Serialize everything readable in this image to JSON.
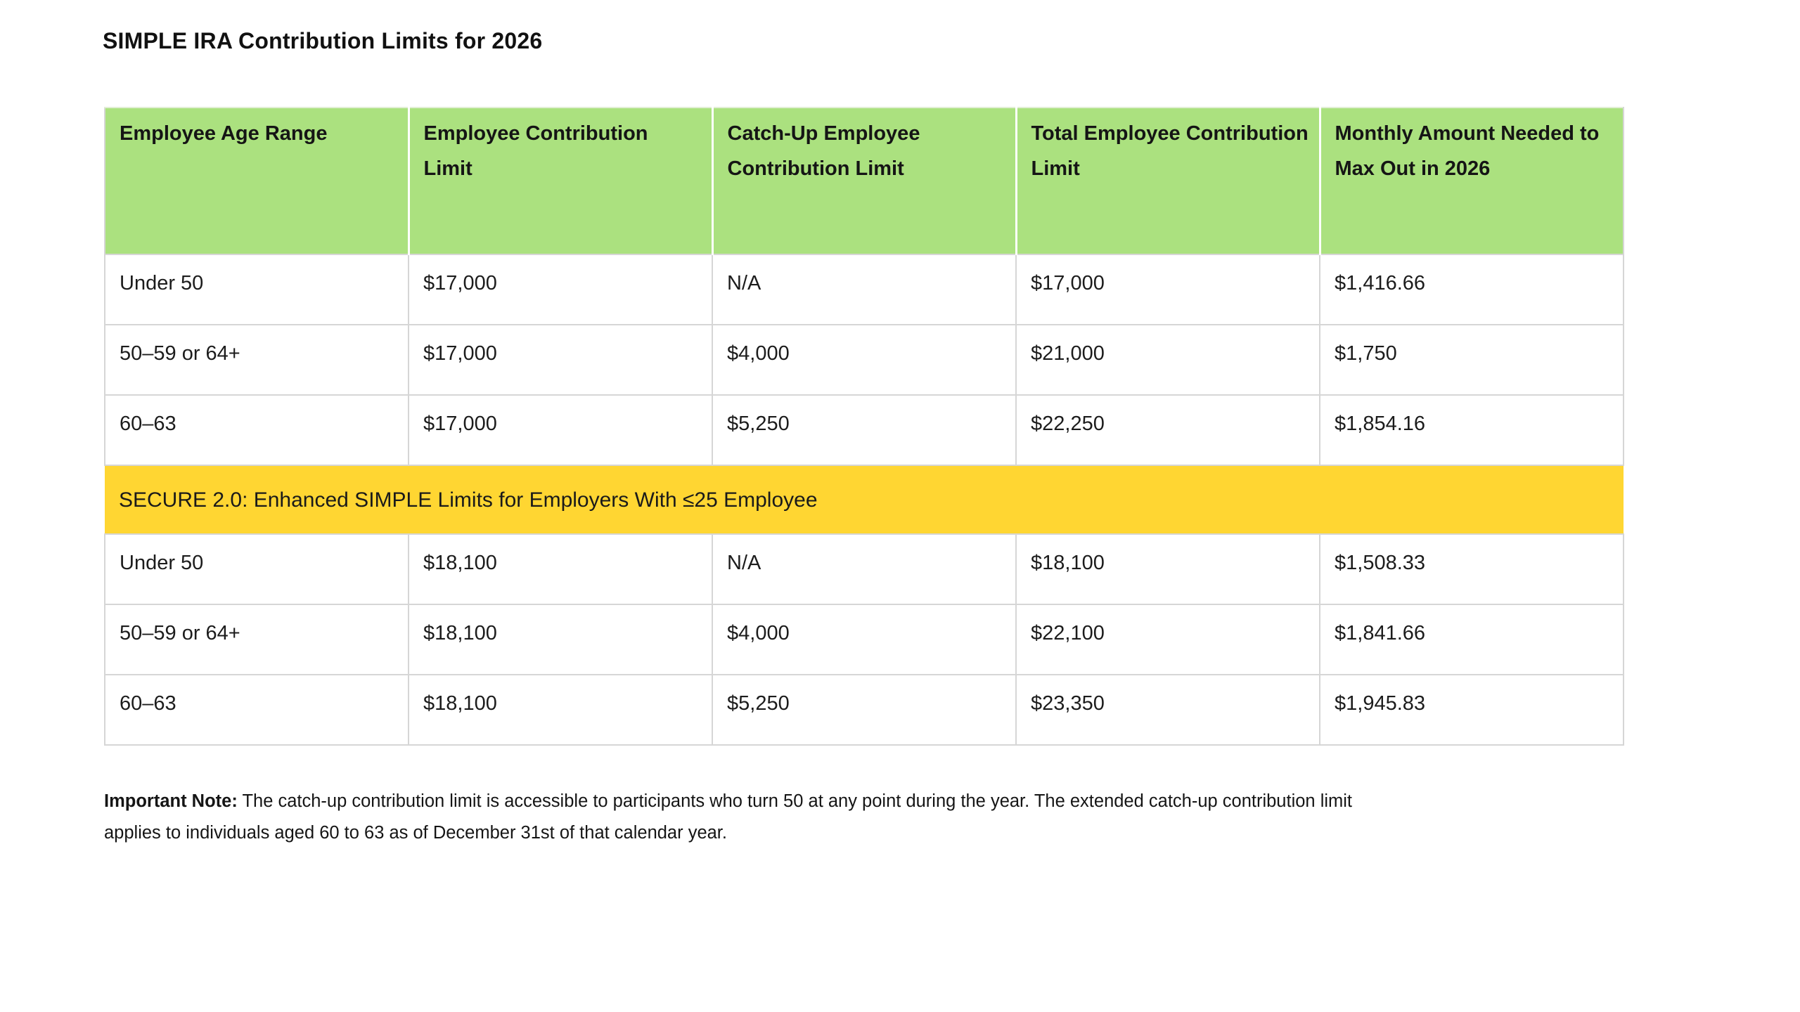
{
  "page": {
    "title": "SIMPLE IRA Contribution Limits for 2026"
  },
  "table": {
    "headers": [
      "Employee Age Range",
      "Employee Contribution Limit",
      "Catch-Up Employee Contribution Limit",
      "Total Employee Contribution Limit",
      "Monthly Amount Needed to Max Out in 2026"
    ],
    "standard_rows": [
      [
        "Under 50",
        "$17,000",
        "N/A",
        "$17,000",
        "$1,416.66"
      ],
      [
        "50–59 or 64+",
        "$17,000",
        "$4,000",
        "$21,000",
        "$1,750"
      ],
      [
        "60–63",
        "$17,000",
        "$5,250",
        "$22,250",
        "$1,854.16"
      ]
    ],
    "banner": "SECURE 2.0: Enhanced SIMPLE Limits for Employers With ≤25 Employee",
    "enhanced_rows": [
      [
        "Under 50",
        "$18,100",
        "N/A",
        "$18,100",
        "$1,508.33"
      ],
      [
        "50–59 or 64+",
        "$18,100",
        "$4,000",
        "$22,100",
        "$1,841.66"
      ],
      [
        "60–63",
        "$18,100",
        "$5,250",
        "$23,350",
        "$1,945.83"
      ]
    ],
    "colors": {
      "header_bg": "#ABE17F",
      "banner_bg": "#FFD632",
      "border": "#D6D6D6"
    }
  },
  "note": {
    "label": "Important Note:",
    "line1": " The catch-up contribution limit is accessible to participants who turn 50 at any point during the year. The extended catch-up contribution limit",
    "line2": "applies to individuals aged 60 to 63 as of December 31st of that calendar year."
  }
}
